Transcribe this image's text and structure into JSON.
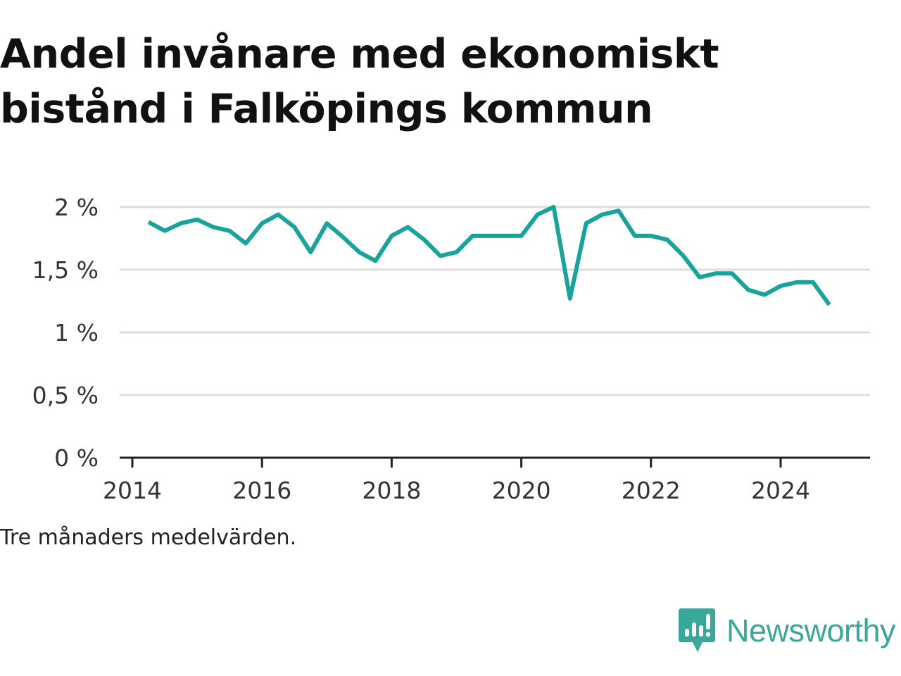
{
  "title": "Andel invånare med ekonomiskt bistånd i Falköpings kommun",
  "note": "Tre månaders medelvärden.",
  "brand": {
    "name": "Newsworthy",
    "icon": "bar-chart-speech-bubble-icon",
    "color": "#3aa79b"
  },
  "colors": {
    "line": "#1aa39a",
    "grid": "#dddddd",
    "axis": "#222222"
  },
  "chart_data": {
    "type": "line",
    "title": "Andel invånare med ekonomiskt bistånd i Falköpings kommun",
    "xlabel": "",
    "ylabel": "",
    "xlim": [
      2014,
      2025.25
    ],
    "ylim": [
      0,
      2
    ],
    "grid": true,
    "legend": "none",
    "x_ticks": [
      2014,
      2016,
      2018,
      2020,
      2022,
      2024
    ],
    "x_tick_labels": [
      "2014",
      "2016",
      "2018",
      "2020",
      "2022",
      "2024"
    ],
    "y_ticks": [
      0,
      0.5,
      1,
      1.5,
      2
    ],
    "y_tick_labels": [
      "0 %",
      "0,5 %",
      "1 %",
      "1,5 %",
      "2 %"
    ],
    "series": [
      {
        "x": [
          "2014-04",
          "2014-07",
          "2014-10",
          "2015-01",
          "2015-04",
          "2015-07",
          "2015-10",
          "2016-01",
          "2016-04",
          "2016-07",
          "2016-10",
          "2017-01",
          "2017-04",
          "2017-07",
          "2017-10",
          "2018-01",
          "2018-04",
          "2018-07",
          "2018-10",
          "2019-01",
          "2019-04",
          "2019-07",
          "2019-10",
          "2020-01",
          "2020-04",
          "2020-07",
          "2020-10",
          "2021-01",
          "2021-04",
          "2021-07",
          "2021-10",
          "2022-01",
          "2022-04",
          "2022-07",
          "2022-10",
          "2023-01",
          "2023-04",
          "2023-07",
          "2023-10",
          "2024-01",
          "2024-04",
          "2024-07",
          "2024-10"
        ],
        "values": [
          1.88,
          1.81,
          1.87,
          1.9,
          1.84,
          1.81,
          1.71,
          1.87,
          1.94,
          1.84,
          1.64,
          1.87,
          1.76,
          1.64,
          1.57,
          1.77,
          1.84,
          1.74,
          1.61,
          1.64,
          1.77,
          1.77,
          1.77,
          1.77,
          1.94,
          2.0,
          1.27,
          1.87,
          1.94,
          1.97,
          1.77,
          1.77,
          1.74,
          1.61,
          1.44,
          1.47,
          1.47,
          1.34,
          1.3,
          1.37,
          1.4,
          1.4,
          1.22
        ]
      }
    ]
  }
}
